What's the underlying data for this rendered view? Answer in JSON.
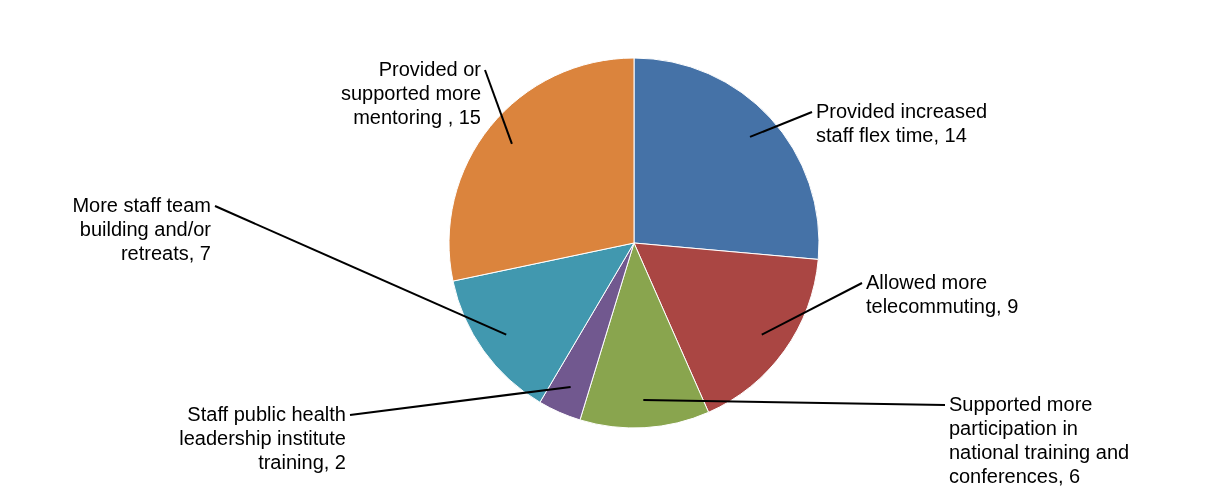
{
  "chart_data": {
    "type": "pie",
    "categories": [
      "Provided increased staff flex time, 14",
      "Allowed more telecommuting, 9",
      "Supported more participation in national training and conferences, 6",
      "Staff public health leadership  institute training, 2",
      "More staff team building and/or retreats, 7",
      "Provided or supported more mentoring , 15"
    ],
    "values": [
      14,
      9,
      6,
      2,
      7,
      15
    ],
    "colors": [
      "#4572a7",
      "#aa4643",
      "#89a54e",
      "#71588f",
      "#4198af",
      "#db843d"
    ]
  }
}
